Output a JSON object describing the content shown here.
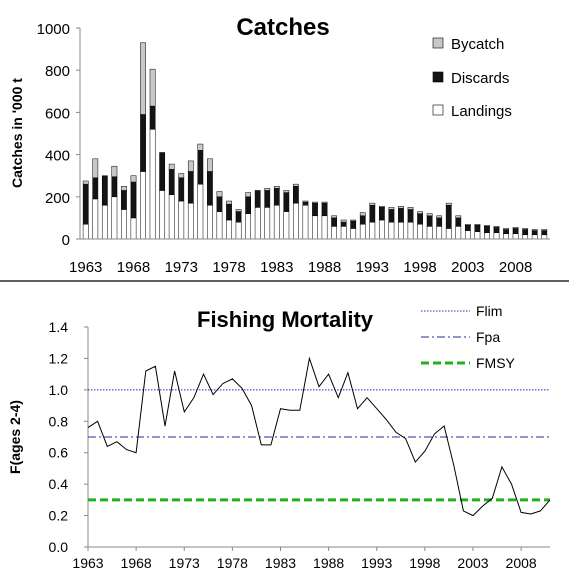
{
  "chart_data": [
    {
      "type": "bar",
      "stacked": true,
      "title": "Catches",
      "xlabel": "",
      "ylabel": "Catches in  '000 t",
      "ylim": [
        0,
        1000
      ],
      "yticks": [
        "0",
        "200",
        "400",
        "600",
        "800",
        "1000"
      ],
      "xticks": [
        "1963",
        "1968",
        "1973",
        "1978",
        "1983",
        "1988",
        "1993",
        "1998",
        "2003",
        "2008"
      ],
      "legend_position": "top-right",
      "x": [
        1963,
        1964,
        1965,
        1966,
        1967,
        1968,
        1969,
        1970,
        1971,
        1972,
        1973,
        1974,
        1975,
        1976,
        1977,
        1978,
        1979,
        1980,
        1981,
        1982,
        1983,
        1984,
        1985,
        1986,
        1987,
        1988,
        1989,
        1990,
        1991,
        1992,
        1993,
        1994,
        1995,
        1996,
        1997,
        1998,
        1999,
        2000,
        2001,
        2002,
        2003,
        2004,
        2005,
        2006,
        2007,
        2008,
        2009,
        2010,
        2011
      ],
      "series": [
        {
          "name": "Landings",
          "color": "#ffffff",
          "values": [
            70,
            190,
            160,
            200,
            140,
            100,
            320,
            520,
            230,
            210,
            180,
            170,
            260,
            160,
            130,
            90,
            80,
            120,
            150,
            150,
            160,
            130,
            170,
            160,
            110,
            110,
            60,
            60,
            50,
            70,
            80,
            90,
            80,
            80,
            80,
            70,
            60,
            60,
            50,
            60,
            40,
            35,
            30,
            30,
            25,
            25,
            20,
            20,
            20
          ]
        },
        {
          "name": "Discards",
          "color": "#141414",
          "values": [
            190,
            100,
            140,
            95,
            90,
            170,
            270,
            110,
            180,
            120,
            110,
            150,
            160,
            160,
            70,
            75,
            50,
            80,
            80,
            80,
            80,
            90,
            80,
            15,
            60,
            60,
            40,
            20,
            35,
            40,
            80,
            60,
            60,
            65,
            60,
            50,
            50,
            40,
            110,
            40,
            25,
            30,
            30,
            25,
            20,
            25,
            25,
            20,
            20
          ]
        },
        {
          "name": "Bycatch",
          "color": "#c8c8c8",
          "values": [
            15,
            90,
            0,
            50,
            20,
            30,
            340,
            175,
            0,
            25,
            20,
            50,
            30,
            60,
            25,
            15,
            10,
            20,
            0,
            10,
            10,
            10,
            10,
            5,
            5,
            5,
            10,
            10,
            5,
            15,
            10,
            5,
            10,
            10,
            10,
            10,
            10,
            10,
            10,
            10,
            5,
            5,
            5,
            5,
            5,
            5,
            5,
            5,
            5
          ]
        }
      ]
    },
    {
      "type": "line",
      "title": "Fishing Mortality",
      "xlabel": "",
      "ylabel": "F(ages 2-4)",
      "ylim": [
        0.0,
        1.4
      ],
      "yticks": [
        "0.0",
        "0.2",
        "0.4",
        "0.6",
        "0.8",
        "1.0",
        "1.2",
        "1.4"
      ],
      "xticks": [
        "1963",
        "1968",
        "1973",
        "1978",
        "1983",
        "1988",
        "1993",
        "1998",
        "2003",
        "2008"
      ],
      "legend_position": "top-right",
      "series": [
        {
          "name": "F",
          "color": "#000000",
          "x": [
            1963,
            1964,
            1965,
            1966,
            1967,
            1968,
            1969,
            1970,
            1971,
            1972,
            1973,
            1974,
            1975,
            1976,
            1977,
            1978,
            1979,
            1980,
            1981,
            1982,
            1983,
            1984,
            1985,
            1986,
            1987,
            1988,
            1989,
            1990,
            1991,
            1992,
            1993,
            1994,
            1995,
            1996,
            1997,
            1998,
            1999,
            2000,
            2001,
            2002,
            2003,
            2004,
            2005,
            2006,
            2007,
            2008,
            2009,
            2010,
            2011
          ],
          "values": [
            0.76,
            0.8,
            0.64,
            0.67,
            0.62,
            0.6,
            1.12,
            1.15,
            0.77,
            1.12,
            0.86,
            0.95,
            1.1,
            0.97,
            1.04,
            1.07,
            1.01,
            0.9,
            0.65,
            0.65,
            0.88,
            0.87,
            0.87,
            1.2,
            1.02,
            1.1,
            0.95,
            1.11,
            0.88,
            0.95,
            0.88,
            0.81,
            0.73,
            0.69,
            0.54,
            0.61,
            0.72,
            0.77,
            0.52,
            0.23,
            0.2,
            0.26,
            0.31,
            0.51,
            0.4,
            0.22,
            0.21,
            0.23,
            0.3
          ]
        }
      ],
      "reference_lines": [
        {
          "name": "Flim",
          "value": 1.0,
          "style": "dotted",
          "color": "#1f2fbf"
        },
        {
          "name": "Fpa",
          "value": 0.7,
          "style": "dashdot",
          "color": "#1f2f9f"
        },
        {
          "name": "FMSY",
          "value": 0.3,
          "style": "dashed",
          "color": "#22b022"
        }
      ]
    }
  ]
}
